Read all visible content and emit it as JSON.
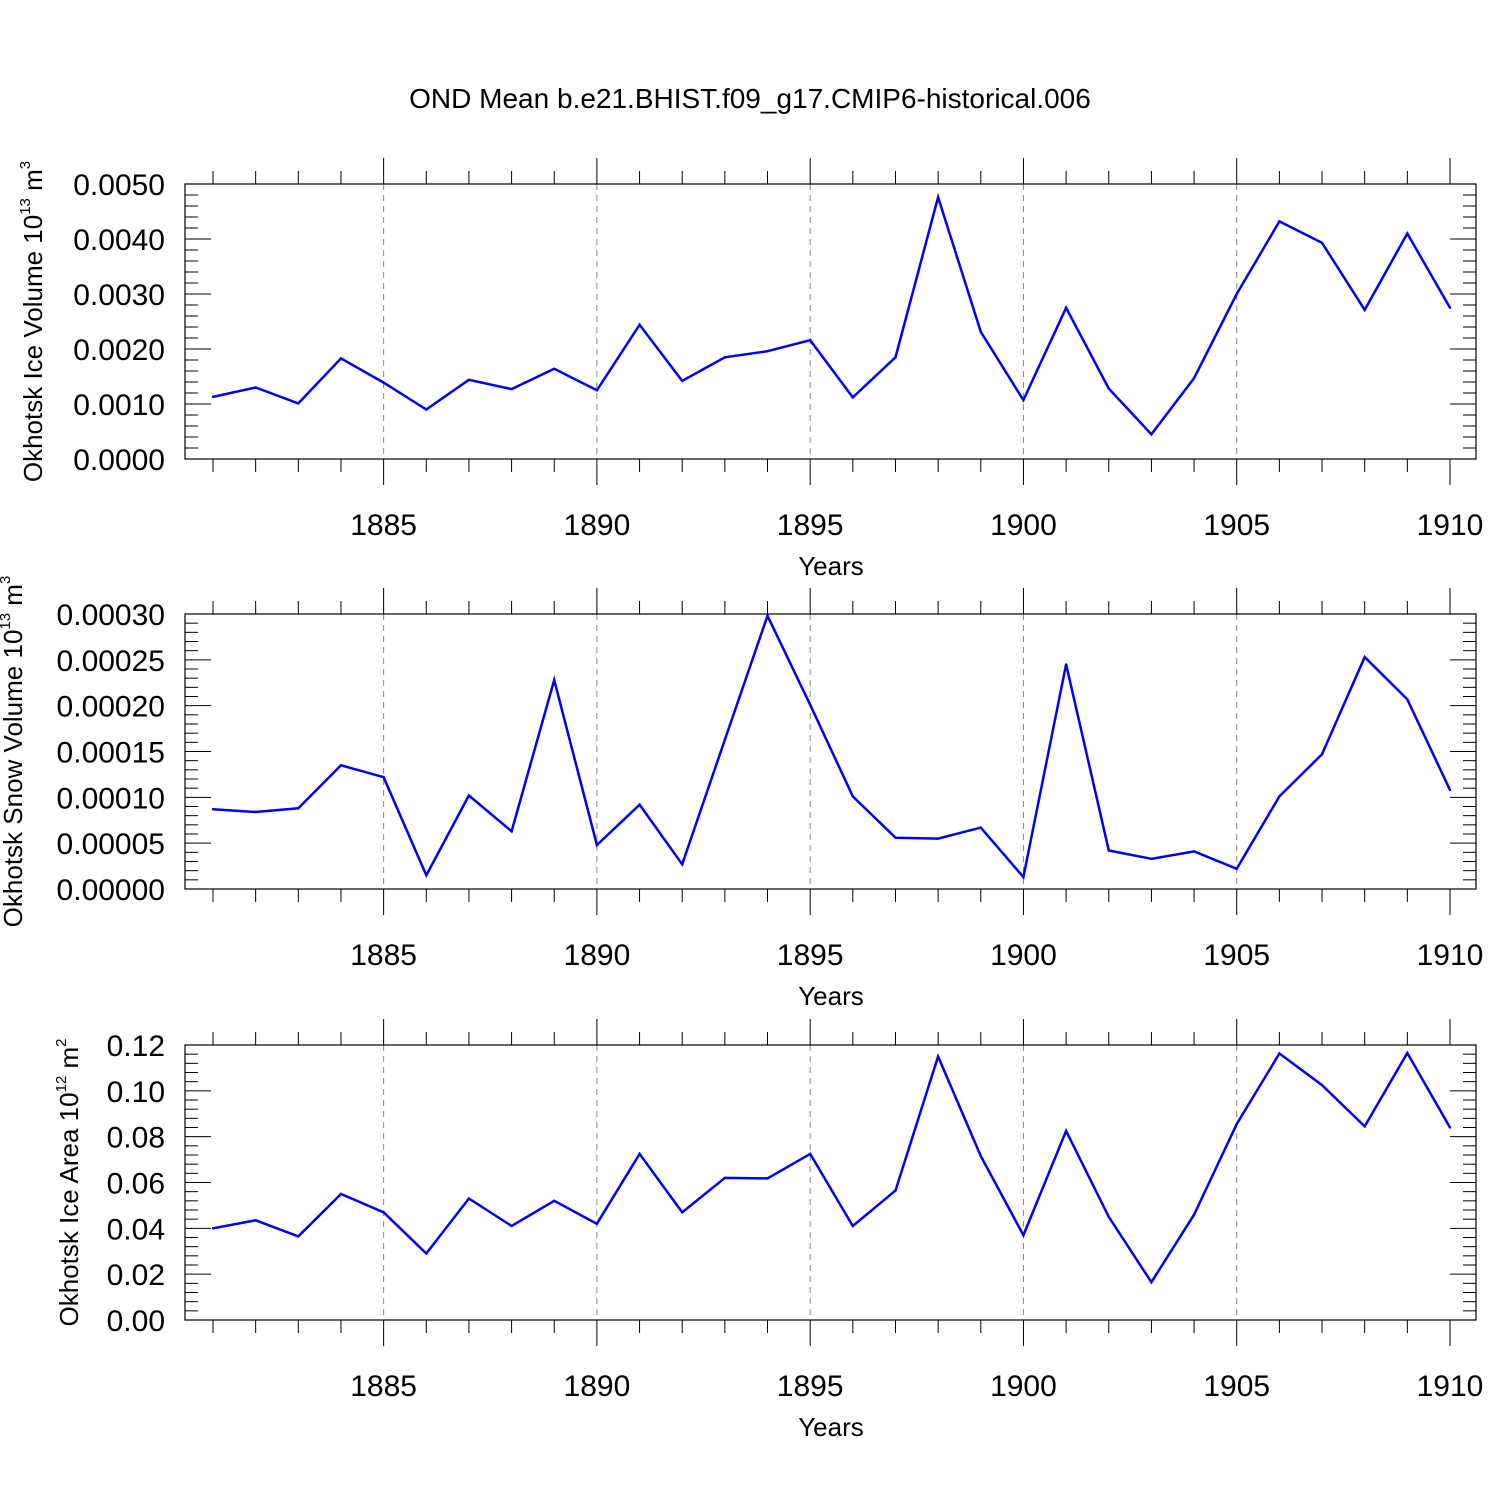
{
  "chart_data": [
    {
      "type": "line",
      "title": "OND Mean b.e21.BHIST.f09_g17.CMIP6-historical.006",
      "xlabel": "Years",
      "ylabel": {
        "text": "Okhotsk Ice Volume 10",
        "exp": "13",
        "unit": " m",
        "unit_exp": "3"
      },
      "xlim": [
        1881,
        1910
      ],
      "ylim": [
        0,
        0.005
      ],
      "xticks": [
        1885,
        1890,
        1895,
        1900,
        1905,
        1910
      ],
      "xtick_labels": [
        "1885",
        "1890",
        "1895",
        "1900",
        "1905",
        "1910"
      ],
      "yticks": [
        0,
        0.001,
        0.002,
        0.003,
        0.004,
        0.005
      ],
      "ytick_labels": [
        "0.0000",
        "0.0010",
        "0.0020",
        "0.0030",
        "0.0040",
        "0.0050"
      ],
      "grid": "vertical dashed at major x ticks",
      "line_color": "#0000ee",
      "x": [
        1881,
        1882,
        1883,
        1884,
        1885,
        1886,
        1887,
        1888,
        1889,
        1890,
        1891,
        1892,
        1893,
        1894,
        1895,
        1896,
        1897,
        1898,
        1899,
        1900,
        1901,
        1902,
        1903,
        1904,
        1905,
        1906,
        1907,
        1908,
        1909,
        1910
      ],
      "values": [
        0.00113,
        0.0013,
        0.00101,
        0.00183,
        0.00139,
        0.0009,
        0.00144,
        0.00127,
        0.00164,
        0.00125,
        0.00244,
        0.00142,
        0.00185,
        0.00196,
        0.00216,
        0.00112,
        0.00185,
        0.00476,
        0.00231,
        0.00107,
        0.00275,
        0.00128,
        0.00045,
        0.00147,
        0.003,
        0.00432,
        0.00393,
        0.00271,
        0.0041,
        0.00275
      ]
    },
    {
      "type": "line",
      "xlabel": "Years",
      "ylabel": {
        "text": "Okhotsk Snow Volume 10",
        "exp": "13",
        "unit": " m",
        "unit_exp": "3"
      },
      "xlim": [
        1881,
        1910
      ],
      "ylim": [
        0,
        0.0003
      ],
      "xticks": [
        1885,
        1890,
        1895,
        1900,
        1905,
        1910
      ],
      "xtick_labels": [
        "1885",
        "1890",
        "1895",
        "1900",
        "1905",
        "1910"
      ],
      "yticks": [
        0,
        5e-05,
        0.0001,
        0.00015,
        0.0002,
        0.00025,
        0.0003
      ],
      "ytick_labels": [
        "0.00000",
        "0.00005",
        "0.00010",
        "0.00015",
        "0.00020",
        "0.00025",
        "0.00030"
      ],
      "grid": "vertical dashed at major x ticks",
      "line_color": "#0000ee",
      "x": [
        1881,
        1882,
        1883,
        1884,
        1885,
        1886,
        1887,
        1888,
        1889,
        1890,
        1891,
        1892,
        1893,
        1894,
        1895,
        1896,
        1897,
        1898,
        1899,
        1900,
        1901,
        1902,
        1903,
        1904,
        1905,
        1906,
        1907,
        1908,
        1909,
        1910
      ],
      "values": [
        8.7e-05,
        8.4e-05,
        8.8e-05,
        0.000135,
        0.000122,
        1.5e-05,
        0.000102,
        6.3e-05,
        0.000228,
        4.8e-05,
        9.2e-05,
        2.7e-05,
        0.000163,
        0.000298,
        0.000201,
        0.000101,
        5.6e-05,
        5.5e-05,
        6.7e-05,
        1.3e-05,
        0.000245,
        4.2e-05,
        3.3e-05,
        4.1e-05,
        2.2e-05,
        0.000101,
        0.000147,
        0.000253,
        0.000207,
        0.000108
      ]
    },
    {
      "type": "line",
      "xlabel": "Years",
      "ylabel": {
        "text": "Okhotsk Ice Area 10",
        "exp": "12",
        "unit": " m",
        "unit_exp": "2"
      },
      "xlim": [
        1881,
        1910
      ],
      "ylim": [
        0,
        0.12
      ],
      "xticks": [
        1885,
        1890,
        1895,
        1900,
        1905,
        1910
      ],
      "xtick_labels": [
        "1885",
        "1890",
        "1895",
        "1900",
        "1905",
        "1910"
      ],
      "yticks": [
        0,
        0.02,
        0.04,
        0.06,
        0.08,
        0.1,
        0.12
      ],
      "ytick_labels": [
        "0.00",
        "0.02",
        "0.04",
        "0.06",
        "0.08",
        "0.10",
        "0.12"
      ],
      "grid": "vertical dashed at major x ticks",
      "line_color": "#0000ee",
      "x": [
        1881,
        1882,
        1883,
        1884,
        1885,
        1886,
        1887,
        1888,
        1889,
        1890,
        1891,
        1892,
        1893,
        1894,
        1895,
        1896,
        1897,
        1898,
        1899,
        1900,
        1901,
        1902,
        1903,
        1904,
        1905,
        1906,
        1907,
        1908,
        1909,
        1910
      ],
      "values": [
        0.04,
        0.0435,
        0.0365,
        0.055,
        0.047,
        0.029,
        0.053,
        0.041,
        0.052,
        0.042,
        0.0725,
        0.047,
        0.062,
        0.0618,
        0.0725,
        0.041,
        0.0565,
        0.115,
        0.0715,
        0.037,
        0.0825,
        0.045,
        0.0165,
        0.046,
        0.0855,
        0.1163,
        0.1025,
        0.0845,
        0.1165,
        0.084
      ]
    }
  ]
}
